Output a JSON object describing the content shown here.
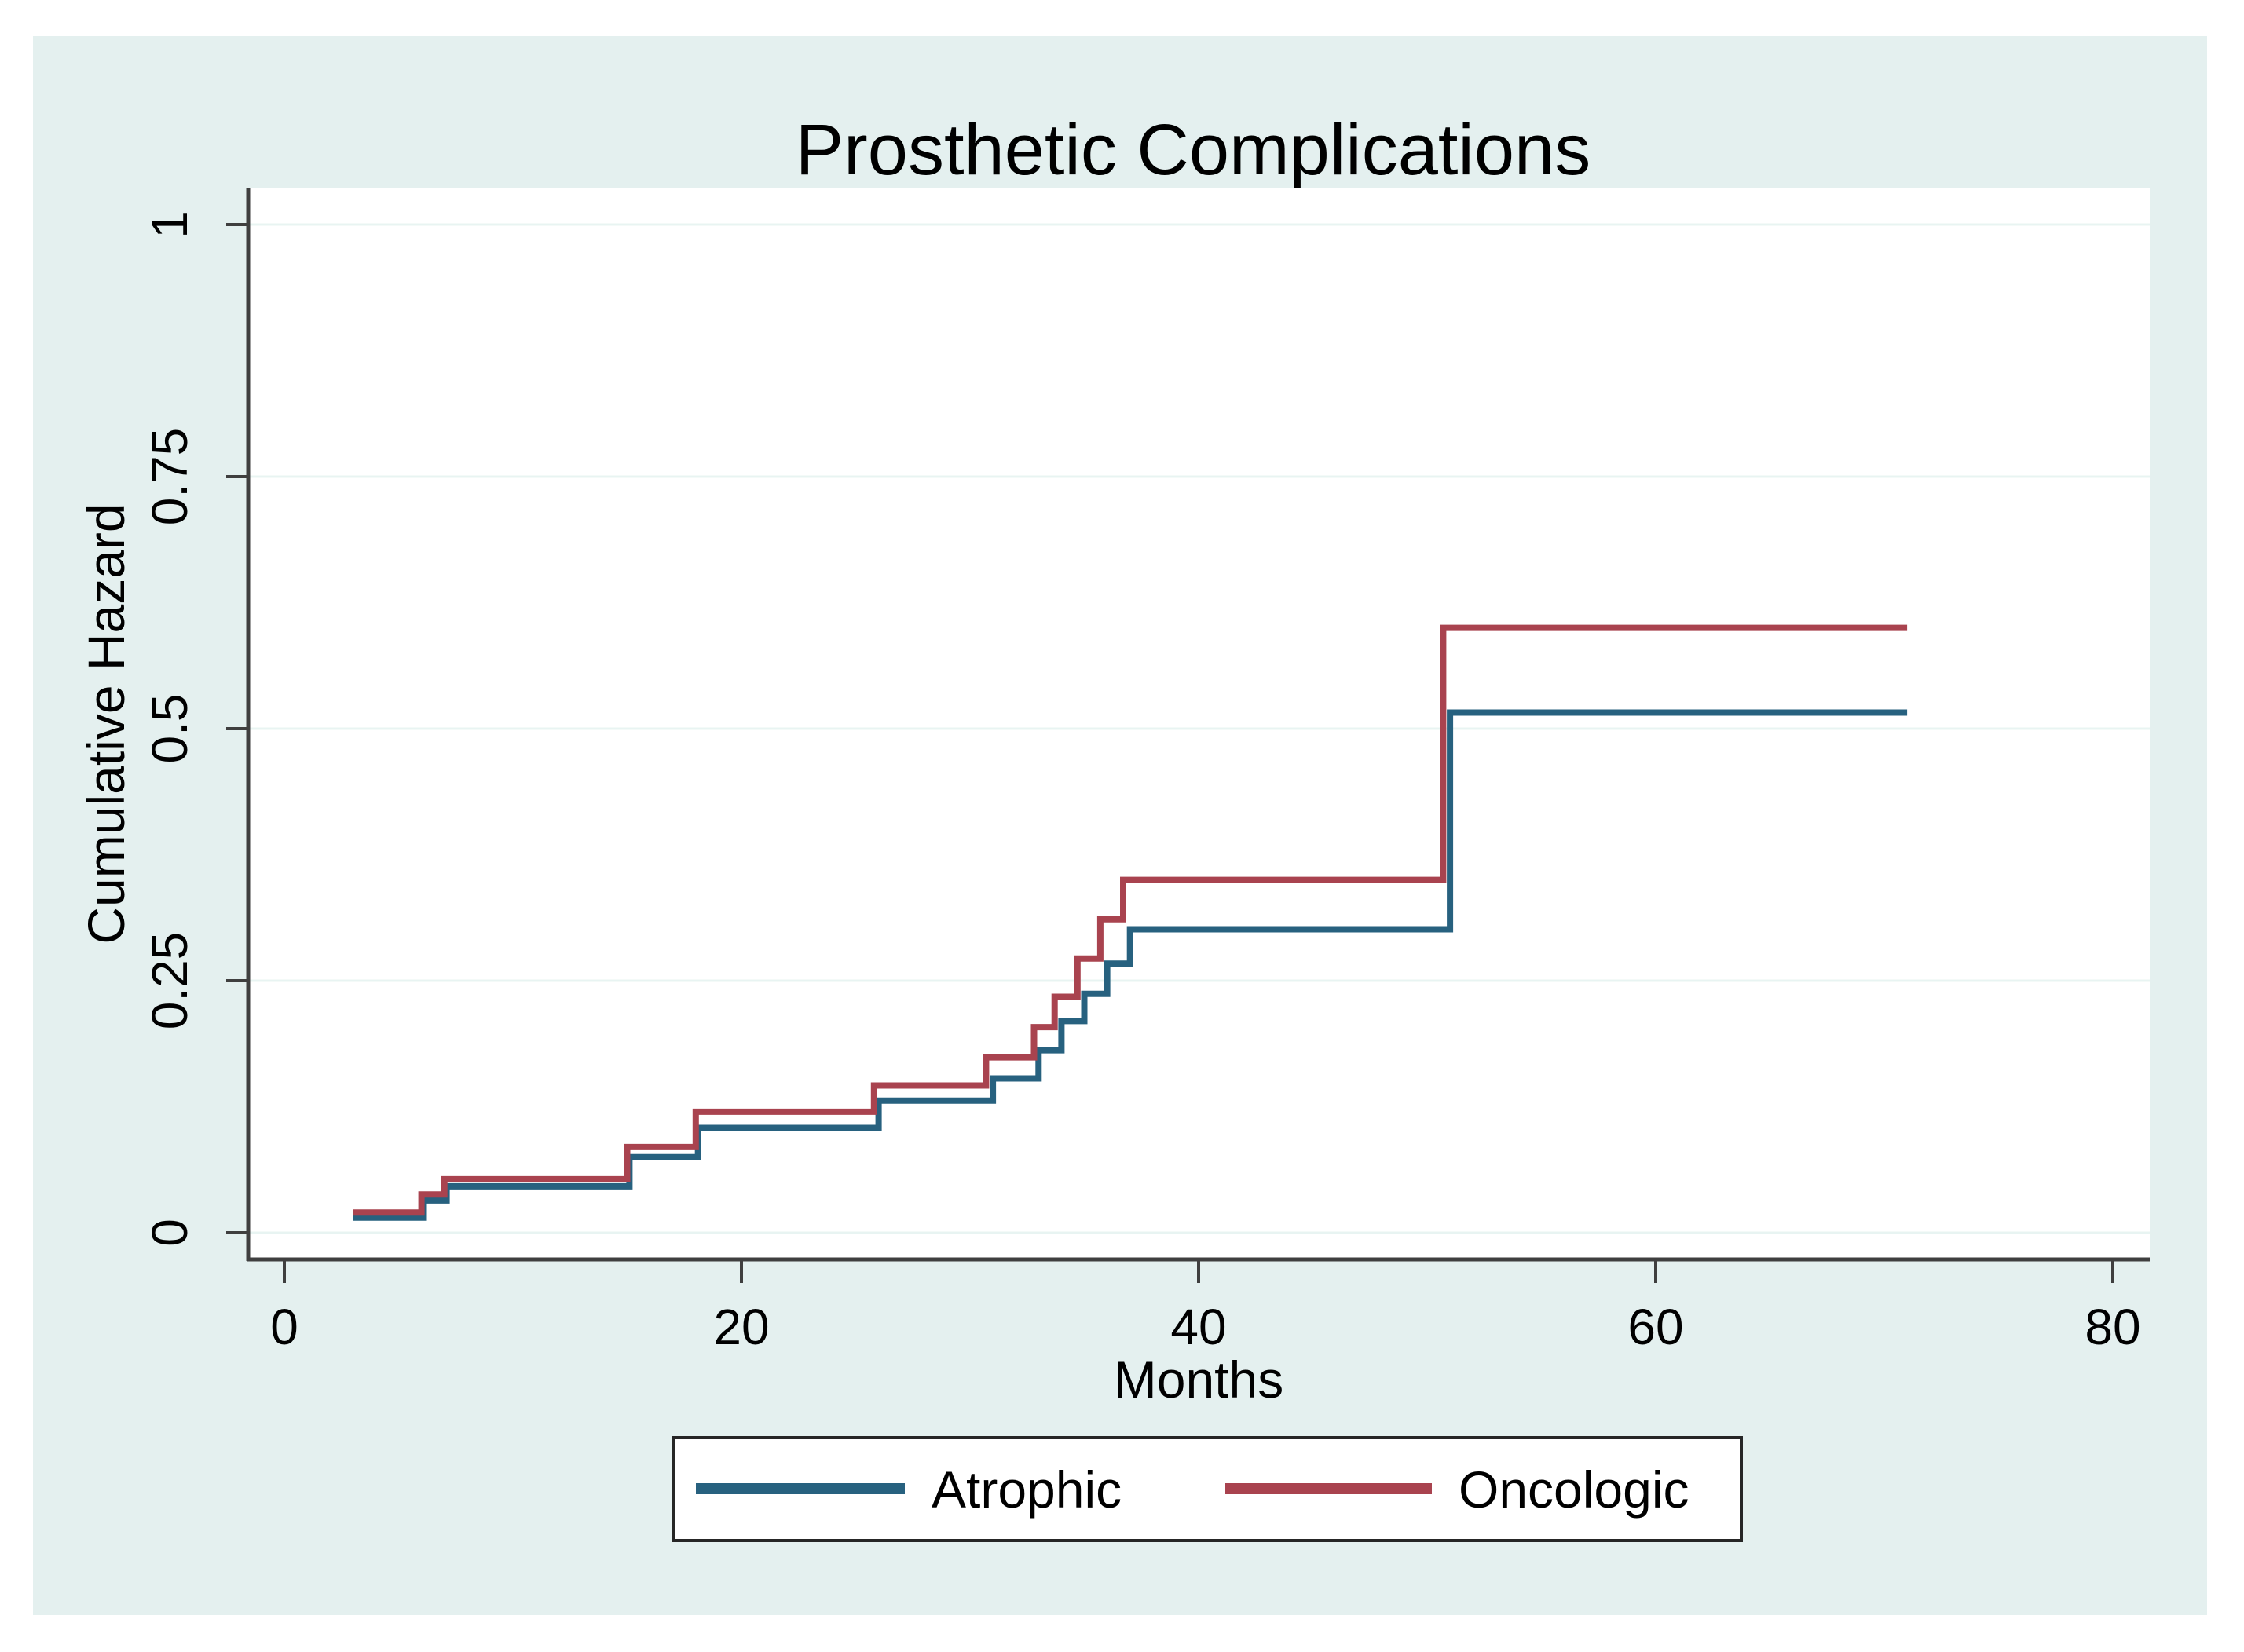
{
  "figure": {
    "title": "Prosthetic Complications",
    "title_color": "#1b3558",
    "background_color": "#e4f0ef",
    "plot_background": "#ffffff",
    "grid_color": "#e8f4f2",
    "axis_color": "#3f3f3f",
    "text_color": "#000000"
  },
  "chart_data": {
    "type": "line",
    "subtype": "step-after",
    "title": "Prosthetic Complications",
    "xlabel": "Months",
    "ylabel": "Cumulative Hazard",
    "xlim": [
      0,
      80
    ],
    "ylim": [
      0,
      1
    ],
    "grid": "horizontal-only",
    "legend_position": "bottom-center",
    "x_ticks": [
      {
        "value": 0,
        "label": "0"
      },
      {
        "value": 20,
        "label": "20"
      },
      {
        "value": 40,
        "label": "40"
      },
      {
        "value": 60,
        "label": "60"
      },
      {
        "value": 80,
        "label": "80"
      }
    ],
    "y_ticks": [
      {
        "value": 0,
        "label": "0"
      },
      {
        "value": 0.25,
        "label": "0.25"
      },
      {
        "value": 0.5,
        "label": "0.5"
      },
      {
        "value": 0.75,
        "label": "0.75"
      },
      {
        "value": 1,
        "label": "1"
      }
    ],
    "series": [
      {
        "name": "Atrophic",
        "color": "#27617f",
        "points": [
          [
            3,
            0.015
          ],
          [
            6.1,
            0.032
          ],
          [
            7.1,
            0.046
          ],
          [
            15.1,
            0.075
          ],
          [
            18.1,
            0.104
          ],
          [
            26,
            0.131
          ],
          [
            31,
            0.153
          ],
          [
            33,
            0.181
          ],
          [
            34,
            0.21
          ],
          [
            35,
            0.237
          ],
          [
            36,
            0.267
          ],
          [
            37,
            0.301
          ],
          [
            51,
            0.516
          ],
          [
            71,
            0.516
          ]
        ]
      },
      {
        "name": "Oncologic",
        "color": "#a9434f",
        "points": [
          [
            3,
            0.02
          ],
          [
            6,
            0.038
          ],
          [
            7,
            0.053
          ],
          [
            15,
            0.085
          ],
          [
            18,
            0.12
          ],
          [
            25.8,
            0.146
          ],
          [
            30.7,
            0.174
          ],
          [
            32.8,
            0.204
          ],
          [
            33.7,
            0.234
          ],
          [
            34.7,
            0.272
          ],
          [
            35.7,
            0.311
          ],
          [
            36.7,
            0.35
          ],
          [
            50.7,
            0.6
          ],
          [
            71,
            0.6
          ]
        ]
      }
    ]
  },
  "legend": {
    "items": [
      {
        "label": "Atrophic",
        "color": "#27617f"
      },
      {
        "label": "Oncologic",
        "color": "#a9434f"
      }
    ]
  }
}
